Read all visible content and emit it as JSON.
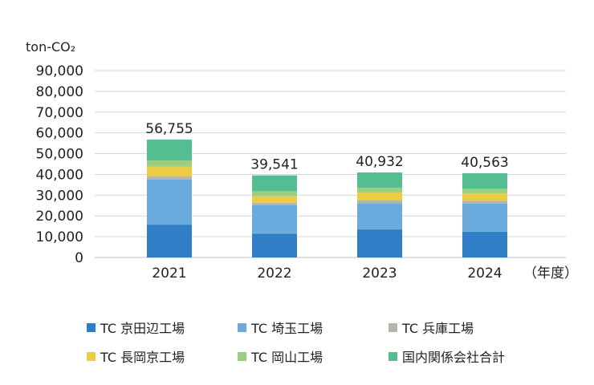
{
  "chart_data": {
    "type": "bar",
    "stacked": true,
    "unit_label": "ton-CO₂",
    "x_suffix": "（年度）",
    "categories": [
      "2021",
      "2022",
      "2023",
      "2024"
    ],
    "totals": [
      "56,755",
      "39,541",
      "40,932",
      "40,563"
    ],
    "ylim": [
      0,
      90000
    ],
    "yticks": [
      "0",
      "10,000",
      "20,000",
      "30,000",
      "40,000",
      "50,000",
      "60,000",
      "70,000",
      "80,000",
      "90,000"
    ],
    "grid": true,
    "legend_position": "bottom",
    "series": [
      {
        "name": "TC 京田辺工場",
        "color": "#2f7ec6",
        "values": [
          15800,
          11500,
          13500,
          12400
        ]
      },
      {
        "name": "TC 埼玉工場",
        "color": "#6aaadc",
        "values": [
          21800,
          13600,
          12600,
          13500
        ]
      },
      {
        "name": "TC 兵庫工場",
        "color": "#b5b5ad",
        "values": [
          1400,
          1300,
          1500,
          1400
        ]
      },
      {
        "name": "TC 長岡京工場",
        "color": "#ebcd44",
        "values": [
          4700,
          3100,
          3600,
          3600
        ]
      },
      {
        "name": "TC 岡山工場",
        "color": "#9bcf7f",
        "values": [
          3055,
          2400,
          2300,
          2300
        ]
      },
      {
        "name": "国内関係会社合計",
        "color": "#55bd92",
        "values": [
          10000,
          7641,
          7432,
          7363
        ]
      }
    ]
  }
}
